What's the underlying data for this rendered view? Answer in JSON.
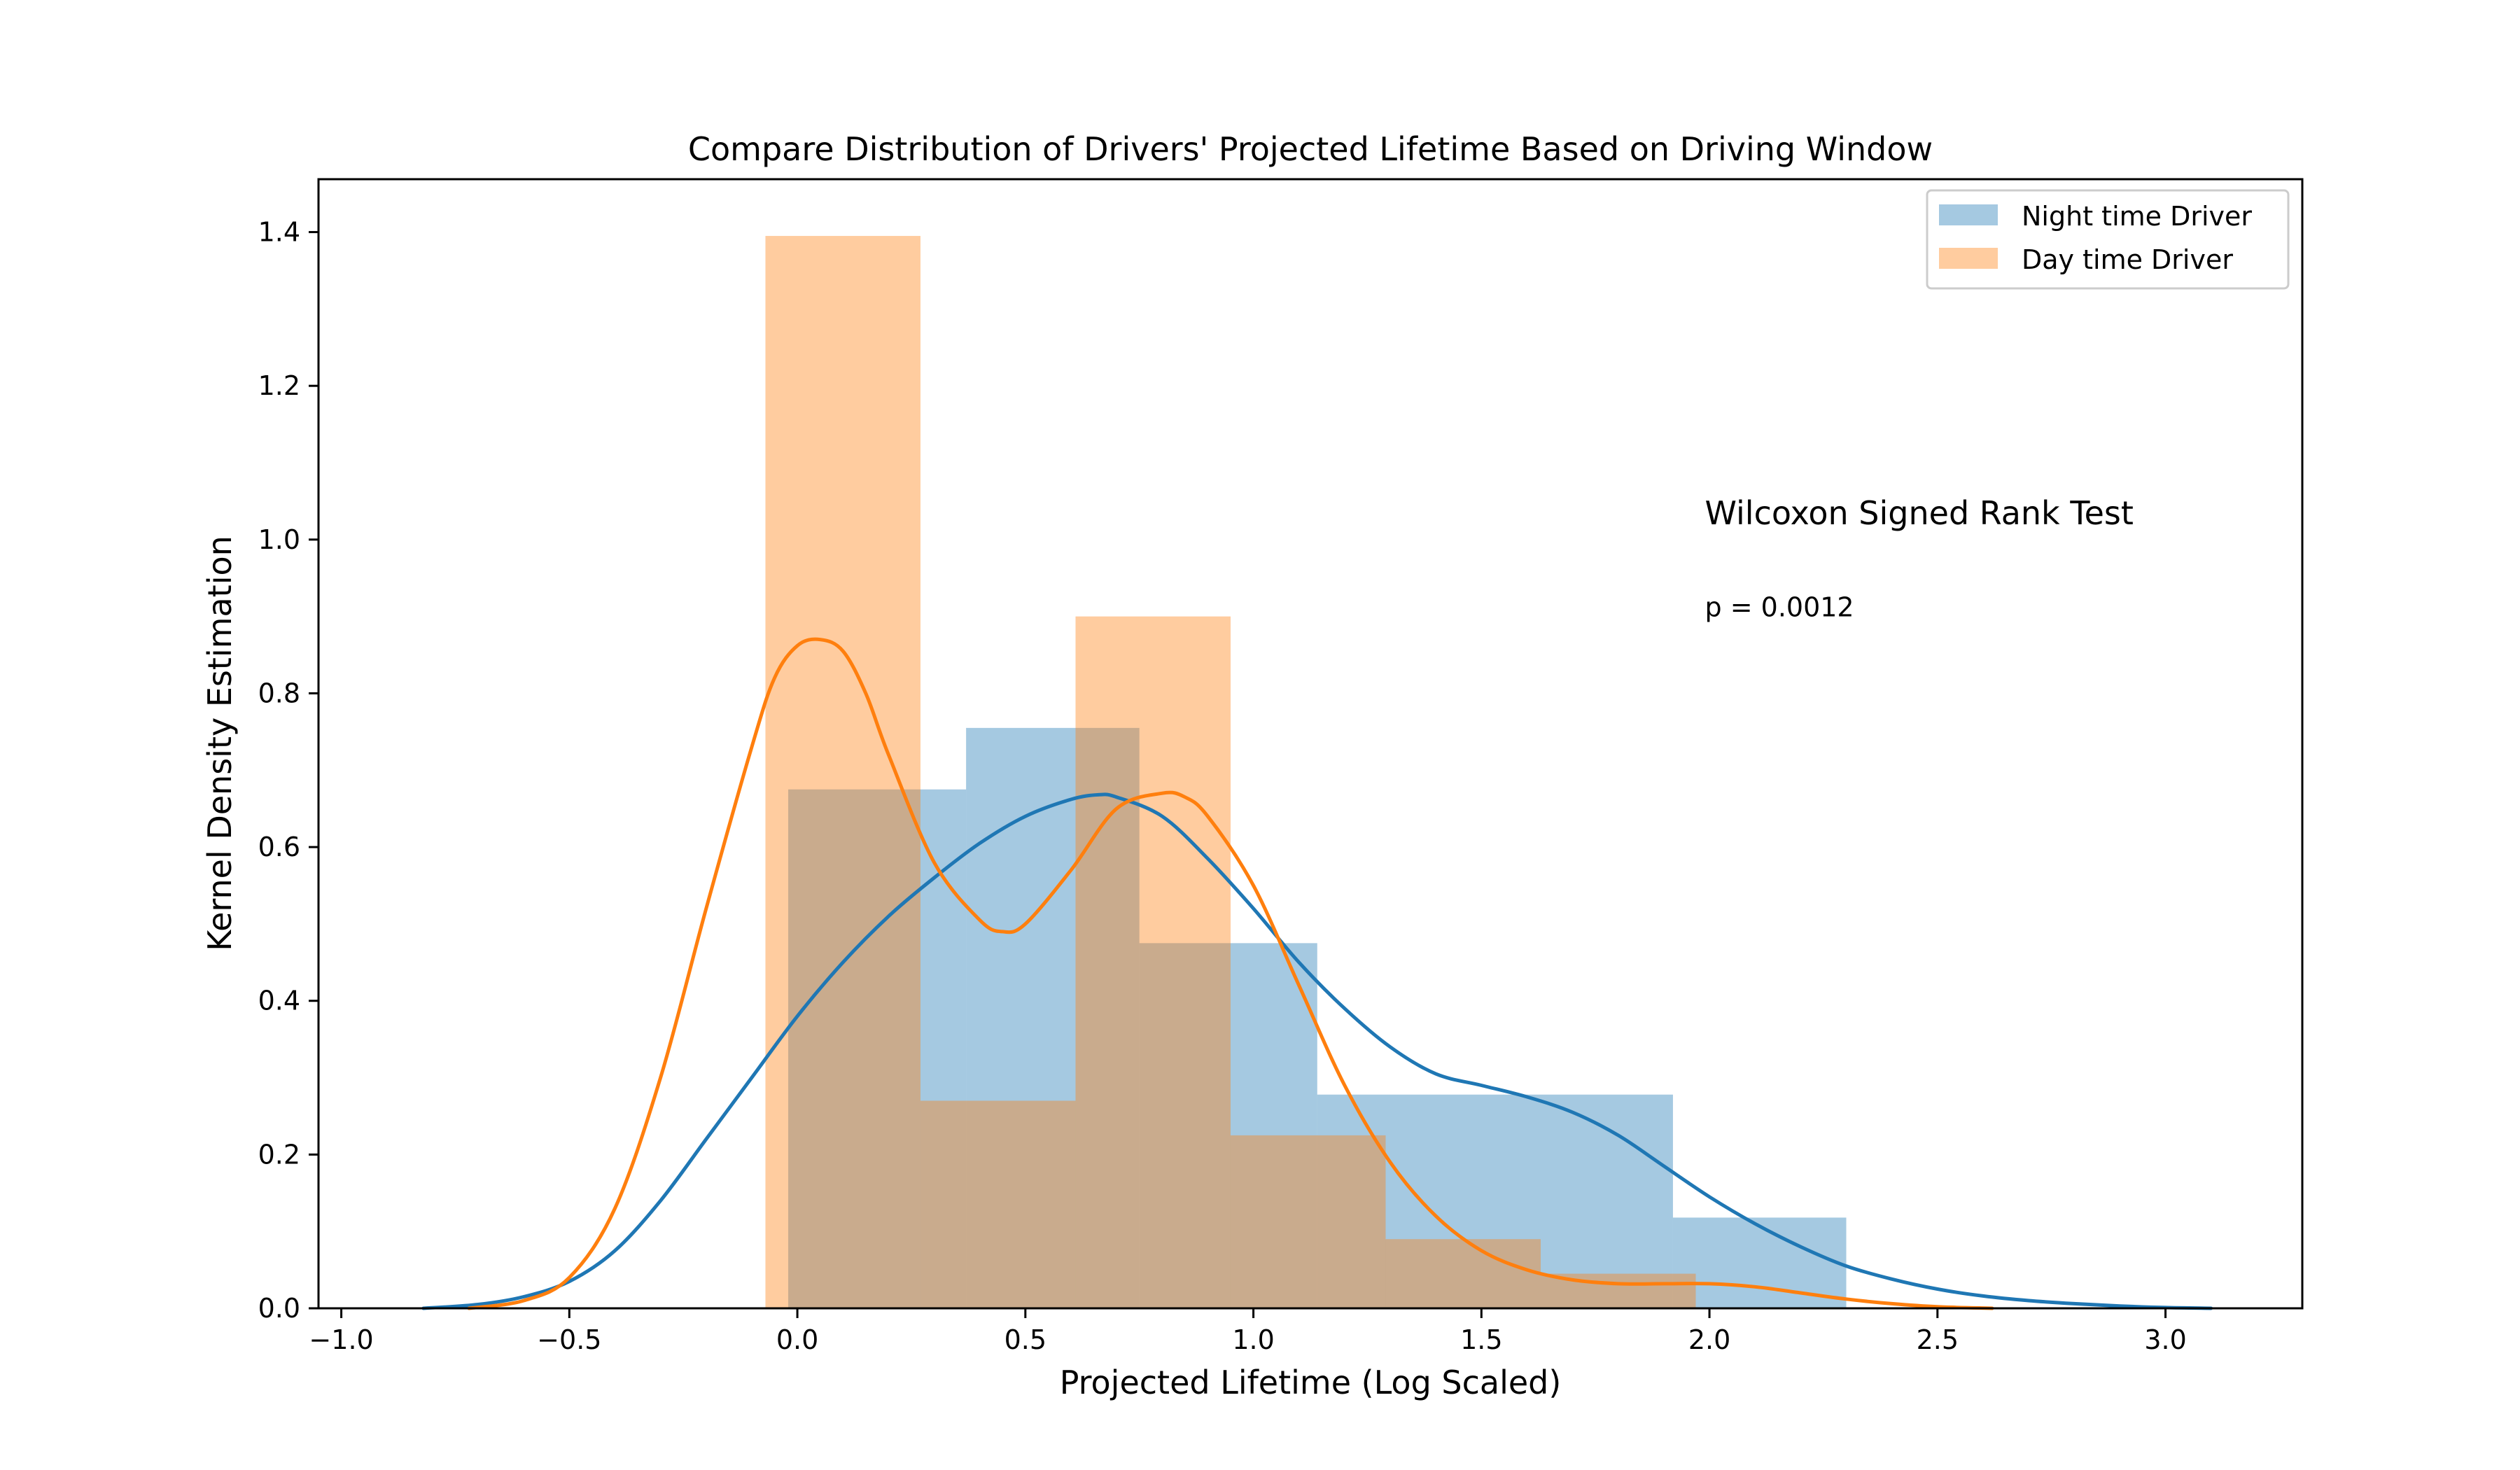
{
  "chart_data": {
    "type": "histogram-kde",
    "title": "Compare Distribution of Drivers' Projected Lifetime Based on Driving Window",
    "xlabel": "Projected Lifetime (Log Scaled)",
    "ylabel": "Kernel Density Estimation",
    "xlim": [
      -1.05,
      3.3
    ],
    "ylim": [
      0,
      1.4688
    ],
    "xticks": [
      -1.0,
      -0.5,
      0.0,
      0.5,
      1.0,
      1.5,
      2.0,
      2.5,
      3.0
    ],
    "xtick_labels": [
      "−1.0",
      "−0.5",
      "0.0",
      "0.5",
      "1.0",
      "1.5",
      "2.0",
      "2.5",
      "3.0"
    ],
    "yticks": [
      0.0,
      0.2,
      0.4,
      0.6,
      0.8,
      1.0,
      1.2,
      1.4
    ],
    "ytick_labels": [
      "0.0",
      "0.2",
      "0.4",
      "0.6",
      "0.8",
      "1.0",
      "1.2",
      "1.4"
    ],
    "legend": {
      "position": "top-right"
    },
    "annotations": [
      {
        "text": "Wilcoxon Signed Rank Test",
        "x": 1.99,
        "y": 1.02,
        "style": "title"
      },
      {
        "text": "p = 0.0012",
        "x": 1.99,
        "y": 0.9,
        "style": "text"
      }
    ],
    "series": [
      {
        "name": "Night time Driver",
        "color": "#1f77b4",
        "hist_alpha": 0.4,
        "bins": [
          {
            "x0": -0.02,
            "x1": 0.37,
            "y": 0.675
          },
          {
            "x0": 0.37,
            "x1": 0.75,
            "y": 0.755
          },
          {
            "x0": 0.75,
            "x1": 1.14,
            "y": 0.475
          },
          {
            "x0": 1.14,
            "x1": 1.92,
            "y": 0.278
          },
          {
            "x0": 1.92,
            "x1": 2.3,
            "y": 0.118
          }
        ],
        "hist_fill_steps": [
          {
            "x0": 0.28,
            "x1": 0.62,
            "y": 0.27
          },
          {
            "x0": 1.14,
            "x1": 1.29,
            "y": 0.278
          }
        ],
        "kde": {
          "x": [
            -0.82,
            -0.7,
            -0.6,
            -0.5,
            -0.4,
            -0.3,
            -0.2,
            -0.1,
            0.0,
            0.1,
            0.2,
            0.3,
            0.4,
            0.5,
            0.6,
            0.66,
            0.7,
            0.8,
            0.9,
            1.0,
            1.1,
            1.2,
            1.3,
            1.4,
            1.5,
            1.6,
            1.7,
            1.8,
            1.9,
            2.0,
            2.1,
            2.2,
            2.3,
            2.4,
            2.5,
            2.6,
            2.7,
            2.8,
            2.9,
            3.0,
            3.1
          ],
          "y": [
            0.0,
            0.005,
            0.015,
            0.035,
            0.075,
            0.14,
            0.22,
            0.3,
            0.38,
            0.45,
            0.51,
            0.56,
            0.605,
            0.64,
            0.662,
            0.668,
            0.665,
            0.64,
            0.585,
            0.52,
            0.45,
            0.39,
            0.34,
            0.305,
            0.29,
            0.275,
            0.255,
            0.225,
            0.185,
            0.145,
            0.11,
            0.08,
            0.055,
            0.038,
            0.025,
            0.016,
            0.01,
            0.006,
            0.003,
            0.001,
            0.0
          ]
        }
      },
      {
        "name": "Day time Driver",
        "color": "#ff7f0e",
        "hist_alpha": 0.4,
        "bins": [
          {
            "x0": -0.07,
            "x1": 0.27,
            "y": 1.395
          },
          {
            "x0": 0.27,
            "x1": 0.61,
            "y": 0.27
          },
          {
            "x0": 0.61,
            "x1": 0.95,
            "y": 0.9
          },
          {
            "x0": 0.95,
            "x1": 1.29,
            "y": 0.225
          },
          {
            "x0": 1.29,
            "x1": 1.63,
            "y": 0.09
          },
          {
            "x0": 1.63,
            "x1": 1.97,
            "y": 0.045
          }
        ],
        "kde": {
          "x": [
            -0.72,
            -0.6,
            -0.5,
            -0.4,
            -0.3,
            -0.2,
            -0.1,
            -0.05,
            0.0,
            0.05,
            0.1,
            0.15,
            0.2,
            0.3,
            0.4,
            0.45,
            0.5,
            0.6,
            0.7,
            0.8,
            0.85,
            0.9,
            1.0,
            1.1,
            1.2,
            1.3,
            1.4,
            1.5,
            1.6,
            1.7,
            1.8,
            1.9,
            2.0,
            2.1,
            2.2,
            2.3,
            2.4,
            2.5,
            2.62
          ],
          "y": [
            0.0,
            0.01,
            0.04,
            0.13,
            0.3,
            0.52,
            0.73,
            0.82,
            0.862,
            0.87,
            0.855,
            0.8,
            0.72,
            0.58,
            0.505,
            0.49,
            0.5,
            0.57,
            0.65,
            0.67,
            0.665,
            0.64,
            0.55,
            0.42,
            0.29,
            0.19,
            0.12,
            0.075,
            0.05,
            0.037,
            0.032,
            0.032,
            0.032,
            0.028,
            0.02,
            0.012,
            0.006,
            0.002,
            0.0
          ]
        }
      }
    ]
  }
}
